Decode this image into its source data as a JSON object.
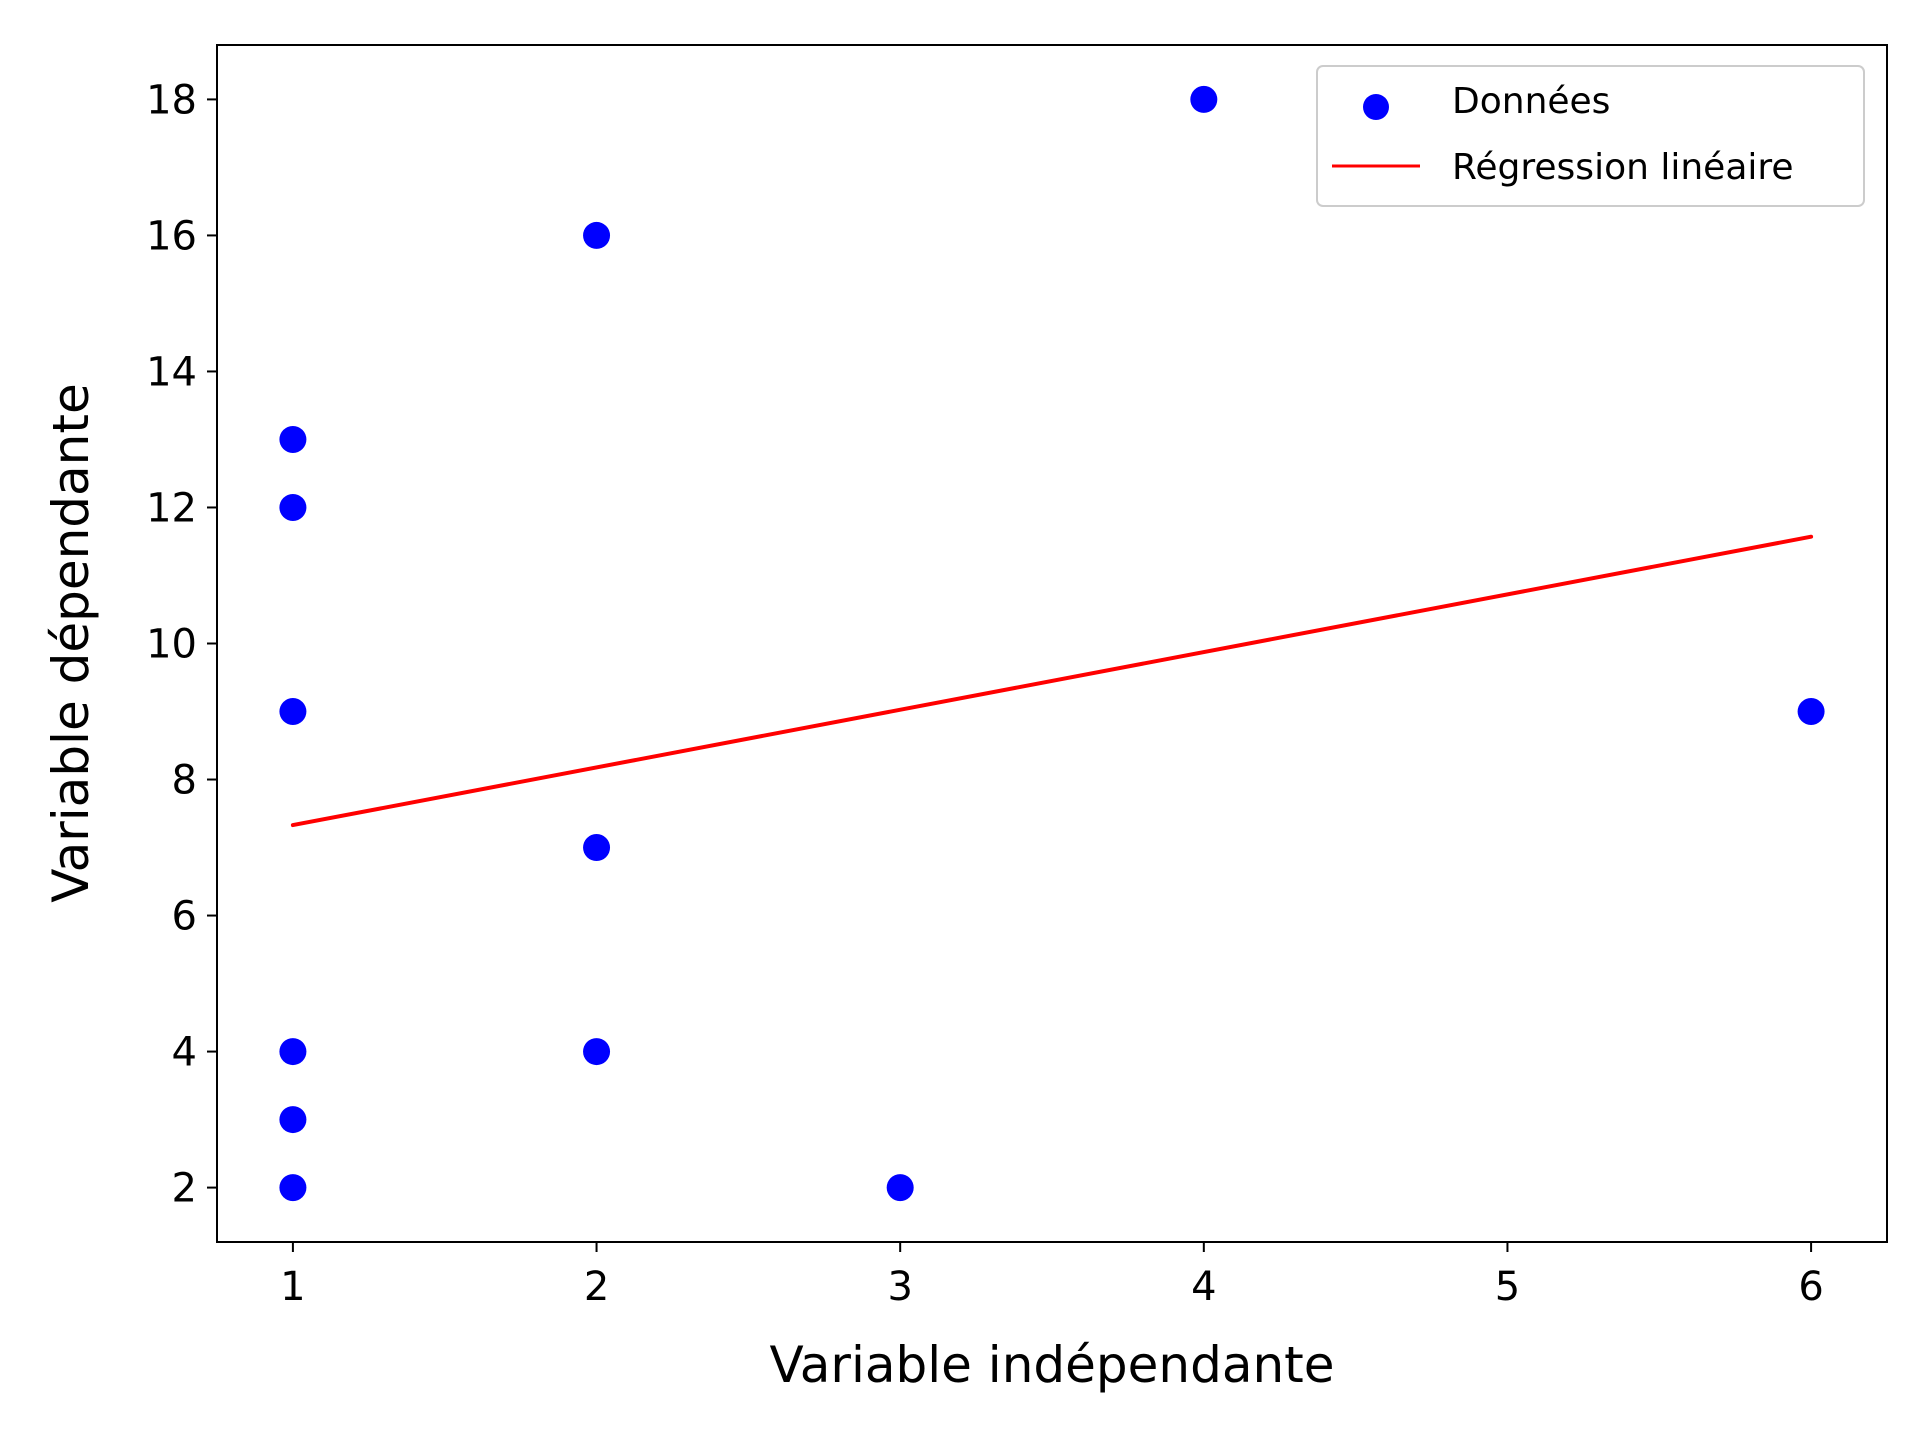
{
  "chart_data": {
    "type": "scatter",
    "title": "",
    "xlabel": "Variable indépendante",
    "ylabel": "Variable dépendante",
    "xlim": [
      0.75,
      6.25
    ],
    "ylim": [
      1.2,
      18.8
    ],
    "xticks": [
      1,
      2,
      3,
      4,
      5,
      6
    ],
    "yticks": [
      2,
      4,
      6,
      8,
      10,
      12,
      14,
      16,
      18
    ],
    "grid": false,
    "legend_position": "top-right",
    "series": [
      {
        "name": "Données",
        "kind": "scatter",
        "color": "#0000ff",
        "points": [
          {
            "x": 1,
            "y": 13
          },
          {
            "x": 1,
            "y": 12
          },
          {
            "x": 1,
            "y": 9
          },
          {
            "x": 1,
            "y": 4
          },
          {
            "x": 1,
            "y": 3
          },
          {
            "x": 1,
            "y": 2
          },
          {
            "x": 2,
            "y": 16
          },
          {
            "x": 2,
            "y": 7
          },
          {
            "x": 2,
            "y": 4
          },
          {
            "x": 3,
            "y": 2
          },
          {
            "x": 4,
            "y": 18
          },
          {
            "x": 6,
            "y": 9
          }
        ]
      },
      {
        "name": "Régression linéaire",
        "kind": "line",
        "color": "#ff0000",
        "points": [
          {
            "x": 1,
            "y": 7.33
          },
          {
            "x": 6,
            "y": 11.57
          }
        ]
      }
    ]
  }
}
